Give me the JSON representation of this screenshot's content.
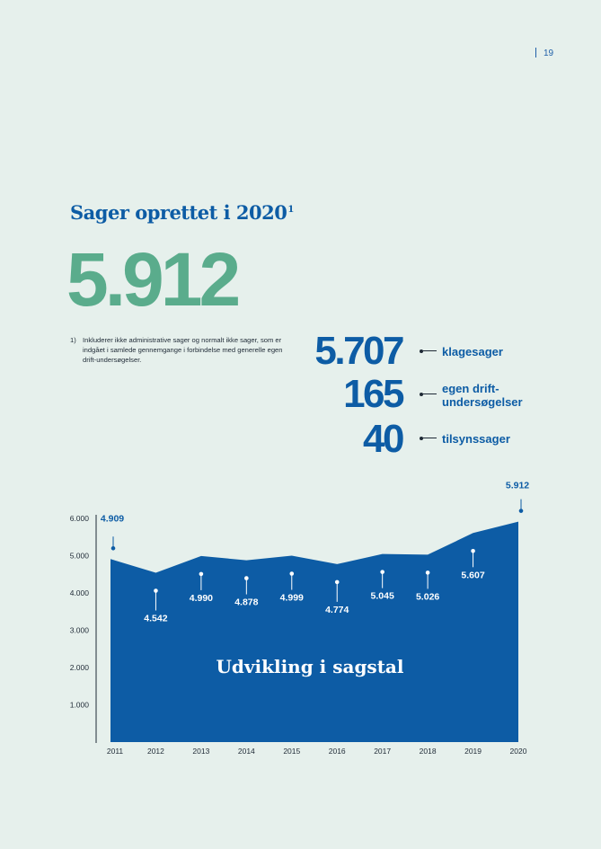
{
  "page": {
    "number": "19"
  },
  "heading": {
    "text": "Sager oprettet i 2020",
    "sup": "1"
  },
  "total": "5.912",
  "footnote": {
    "number": "1)",
    "text": "Inkluderer ikke administrative sager og normalt ikke sager, som er indgået i samlede gennemgange i forbindelse med generelle egen drift-undersøgelser."
  },
  "breakdown": [
    {
      "value": "5.707",
      "label": "klagesager"
    },
    {
      "value": "165",
      "label": "egen drift-\nundersøgelser"
    },
    {
      "value": "40",
      "label": "tilsynssager"
    }
  ],
  "colors": {
    "background": "#e6f0ec",
    "brand_blue": "#0d5ca5",
    "accent_green": "#5aac8c",
    "area_fill": "#0d5ca5"
  },
  "chart_data": {
    "type": "area",
    "title": "Udvikling i sagstal",
    "x": [
      "2011",
      "2012",
      "2013",
      "2014",
      "2015",
      "2016",
      "2017",
      "2018",
      "2019",
      "2020"
    ],
    "values": [
      4909,
      4542,
      4990,
      4878,
      4999,
      4774,
      5045,
      5026,
      5607,
      5912
    ],
    "data_labels": [
      "4.909",
      "4.542",
      "4.990",
      "4.878",
      "4.999",
      "4.774",
      "5.045",
      "5.026",
      "5.607",
      "5.912"
    ],
    "y_ticks": [
      1000,
      2000,
      3000,
      4000,
      5000,
      6000
    ],
    "y_tick_labels": [
      "1.000",
      "2.000",
      "3.000",
      "4.000",
      "5.000",
      "6.000"
    ],
    "ylim": [
      0,
      6000
    ],
    "xlabel": "",
    "ylabel": "",
    "grid": false,
    "legend": "none"
  }
}
